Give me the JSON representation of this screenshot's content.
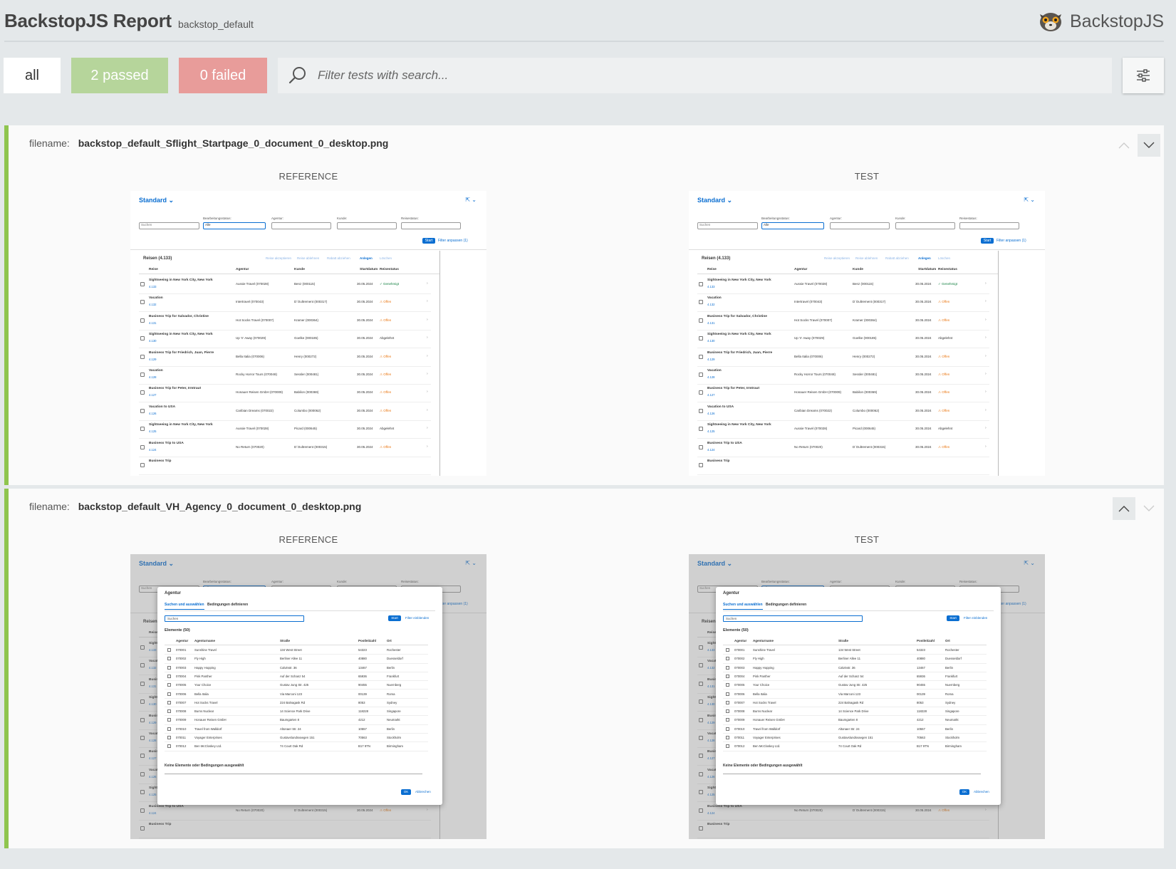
{
  "header": {
    "title": "BackstopJS Report",
    "suite": "backstop_default",
    "brand": "BackstopJS"
  },
  "toolbar": {
    "all_label": "all",
    "passed_label": "2 passed",
    "failed_label": "0 failed",
    "search_placeholder": "Filter tests with search..."
  },
  "tests": [
    {
      "filename_label": "filename:",
      "filename": "backstop_default_Sflight_Startpage_0_document_0_desktop.png",
      "reference_label": "REFERENCE",
      "test_label": "TEST"
    },
    {
      "filename_label": "filename:",
      "filename": "backstop_default_VH_Agency_0_document_0_desktop.png",
      "reference_label": "REFERENCE",
      "test_label": "TEST"
    }
  ],
  "app": {
    "variant": "Standard",
    "filters": [
      "Bearbeitungsstatus:",
      "Agentur:",
      "Kunde:",
      "Reisestatus:"
    ],
    "search_placeholder": "Suchen",
    "status_value": "Alle",
    "start": "Start",
    "adapt_filters": "Filter anpassen (1)",
    "table_title": "Reisen (4.133)",
    "actions": [
      "Reise akzeptieren",
      "Reise ablehnen",
      "Rabatt abziehen",
      "Anlegen",
      "Löschen"
    ],
    "columns": [
      "Reise",
      "Agentur",
      "Kunde",
      "Startdatum",
      "Reisestatus"
    ],
    "rows": [
      {
        "title": "Sightseeing in New York City, New York",
        "id": "4.133",
        "agency": "Aussie Travel (070028)",
        "customer": "Benz (000115)",
        "date": "30.05.2024",
        "status": "Genehmigt",
        "kind": "ok"
      },
      {
        "title": "Vacation",
        "id": "4.132",
        "agency": "Intertravel (070043)",
        "customer": "D´Oultrement (000317)",
        "date": "30.05.2024",
        "status": "Offen",
        "kind": "open"
      },
      {
        "title": "Business Trip for Salvador, Christine",
        "id": "4.131",
        "agency": "Hot Socks Travel (070007)",
        "customer": "Kramer (000364)",
        "date": "30.05.2024",
        "status": "Offen",
        "kind": "open"
      },
      {
        "title": "Sightseeing in New York City, New York",
        "id": "4.130",
        "agency": "Up 'n' Away (070029)",
        "customer": "Goelke (000185)",
        "date": "30.05.2024",
        "status": "Abgelehnt",
        "kind": "rej"
      },
      {
        "title": "Business Trip for Friedrich, Juan, Pierre",
        "id": "4.129",
        "agency": "Bella Italia (070006)",
        "customer": "Henry (000272)",
        "date": "30.05.2024",
        "status": "Offen",
        "kind": "open"
      },
      {
        "title": "Vacation",
        "id": "4.128",
        "agency": "Rocky Horror Tours (070048)",
        "customer": "Sessler (000481)",
        "date": "30.05.2024",
        "status": "Offen",
        "kind": "open"
      },
      {
        "title": "Business Trip for Peter, Irmtraut",
        "id": "4.127",
        "agency": "Honauer Reisen GmbH (070009)",
        "customer": "Babilon (000369)",
        "date": "30.05.2024",
        "status": "Offen",
        "kind": "open"
      },
      {
        "title": "Vacation to USA",
        "id": "4.126",
        "agency": "Caribian Dreams (070022)",
        "customer": "Columbo (000062)",
        "date": "30.05.2024",
        "status": "Offen",
        "kind": "open"
      },
      {
        "title": "Sightseeing in New York City, New York",
        "id": "4.125",
        "agency": "Aussie Travel (070028)",
        "customer": "Picard (000645)",
        "date": "30.05.2024",
        "status": "Abgelehnt",
        "kind": "rej"
      },
      {
        "title": "Business Trip to USA",
        "id": "4.124",
        "agency": "No Return (070020)",
        "customer": "D´Oultrement (000315)",
        "date": "30.05.2024",
        "status": "Offen",
        "kind": "open"
      },
      {
        "title": "Business Trip",
        "id": "",
        "agency": "",
        "customer": "",
        "date": "",
        "status": "",
        "kind": "rej"
      }
    ],
    "dialog": {
      "title": "Agentur",
      "tabs": [
        "Suchen und auswählen",
        "Bedingungen definieren"
      ],
      "search": "Suchen",
      "start": "Start",
      "show_filters": "Filter einblenden",
      "elements": "Elemente (50)",
      "columns": [
        "Agentur",
        "Agenturname",
        "Straße",
        "Postleitzahl",
        "Ort"
      ],
      "rows": [
        [
          "070001",
          "Sunshine Travel",
          "134 West Street",
          "54323",
          "Rochester"
        ],
        [
          "070002",
          "Fly High",
          "Berliner Allee 11",
          "40880",
          "Duesseldorf"
        ],
        [
          "070003",
          "Happy Hopping",
          "Calvinstr. 36",
          "13467",
          "Berlin"
        ],
        [
          "070004",
          "Pink Panther",
          "Auf der Schanz 54",
          "65936",
          "Frankfurt"
        ],
        [
          "070005",
          "Your Choice",
          "Gustav Jung Str. 425",
          "90455",
          "Nuernberg"
        ],
        [
          "070006",
          "Bella Italia",
          "Via Marconi 123",
          "00139",
          "Roma"
        ],
        [
          "070007",
          "Hot Socks Travel",
          "224 Balnagask Rd",
          "8053",
          "Sydney"
        ],
        [
          "070008",
          "Burns Nuclear",
          "14 Science Park Drive",
          "118228",
          "Singapore"
        ],
        [
          "070009",
          "Honauer Reisen GmbH",
          "Baumgarten 8",
          "4212",
          "Neumarkt"
        ],
        [
          "070010",
          "Travel from Walldorf",
          "Altonaer Str. 24",
          "10557",
          "Berlin"
        ],
        [
          "070011",
          "Voyager Enterprises",
          "Gustavslundsvaegen 151",
          "70563",
          "Stockholm"
        ],
        [
          "070012",
          "Ben McCloskey Ltd.",
          "74 Court Oak Rd",
          "B17 9TN",
          "Birmingham"
        ]
      ],
      "none_selected": "Keine Elemente oder Bedingungen ausgewählt",
      "ok": "OK",
      "cancel": "Abbrechen"
    }
  },
  "icons": [
    "lemur-logo-icon",
    "search-icon",
    "settings-sliders-icon",
    "chevron-up-icon",
    "chevron-down-icon"
  ],
  "colors": {
    "pass": "#b6d59b",
    "fail": "#e89c9a",
    "card_border": "#8fc54f",
    "sap_blue": "#0a6ed1"
  }
}
